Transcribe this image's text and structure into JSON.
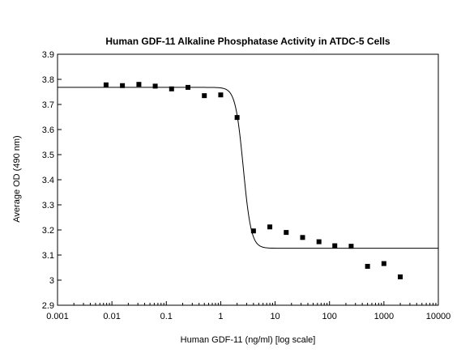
{
  "chart_data": {
    "type": "scatter",
    "title": "Human GDF-11 Alkaline Phosphatase Activity in ATDC-5 Cells",
    "xlabel": "Human GDF-11 (ng/ml) [log scale]",
    "ylabel": "Average OD (490 nm)",
    "x_scale": "log",
    "xlim": [
      0.001,
      10000
    ],
    "ylim": [
      2.9,
      3.9
    ],
    "x_ticks": [
      {
        "value": 0.001,
        "label": "0.001"
      },
      {
        "value": 0.01,
        "label": "0.01"
      },
      {
        "value": 0.1,
        "label": "0.1"
      },
      {
        "value": 1,
        "label": "1"
      },
      {
        "value": 10,
        "label": "10"
      },
      {
        "value": 100,
        "label": "100"
      },
      {
        "value": 1000,
        "label": "1000"
      },
      {
        "value": 10000,
        "label": "10000"
      }
    ],
    "y_ticks": [
      {
        "value": 2.9,
        "label": "2.9"
      },
      {
        "value": 3.0,
        "label": "3"
      },
      {
        "value": 3.1,
        "label": "3.1"
      },
      {
        "value": 3.2,
        "label": "3.2"
      },
      {
        "value": 3.3,
        "label": "3.3"
      },
      {
        "value": 3.4,
        "label": "3.4"
      },
      {
        "value": 3.5,
        "label": "3.5"
      },
      {
        "value": 3.6,
        "label": "3.6"
      },
      {
        "value": 3.7,
        "label": "3.7"
      },
      {
        "value": 3.8,
        "label": "3.8"
      },
      {
        "value": 3.9,
        "label": "3.9"
      }
    ],
    "grid": false,
    "legend": "none",
    "points": [
      {
        "x": 0.0078,
        "y": 3.778
      },
      {
        "x": 0.0156,
        "y": 3.775
      },
      {
        "x": 0.0313,
        "y": 3.78
      },
      {
        "x": 0.0625,
        "y": 3.773
      },
      {
        "x": 0.125,
        "y": 3.762
      },
      {
        "x": 0.25,
        "y": 3.768
      },
      {
        "x": 0.5,
        "y": 3.735
      },
      {
        "x": 1.0,
        "y": 3.738
      },
      {
        "x": 2.0,
        "y": 3.648
      },
      {
        "x": 4.0,
        "y": 3.196
      },
      {
        "x": 8.0,
        "y": 3.212
      },
      {
        "x": 16.0,
        "y": 3.19
      },
      {
        "x": 32.0,
        "y": 3.17
      },
      {
        "x": 64.0,
        "y": 3.153
      },
      {
        "x": 125.0,
        "y": 3.137
      },
      {
        "x": 250.0,
        "y": 3.135
      },
      {
        "x": 500.0,
        "y": 3.055
      },
      {
        "x": 1000.0,
        "y": 3.066
      },
      {
        "x": 2000.0,
        "y": 3.013
      }
    ],
    "fit_curve": {
      "model": "4PL",
      "top": 3.768,
      "bottom": 3.127,
      "ec50": 2.6,
      "hill": 6
    },
    "colors": {
      "marker": "#000000",
      "line": "#000000",
      "axis": "#000000"
    }
  }
}
